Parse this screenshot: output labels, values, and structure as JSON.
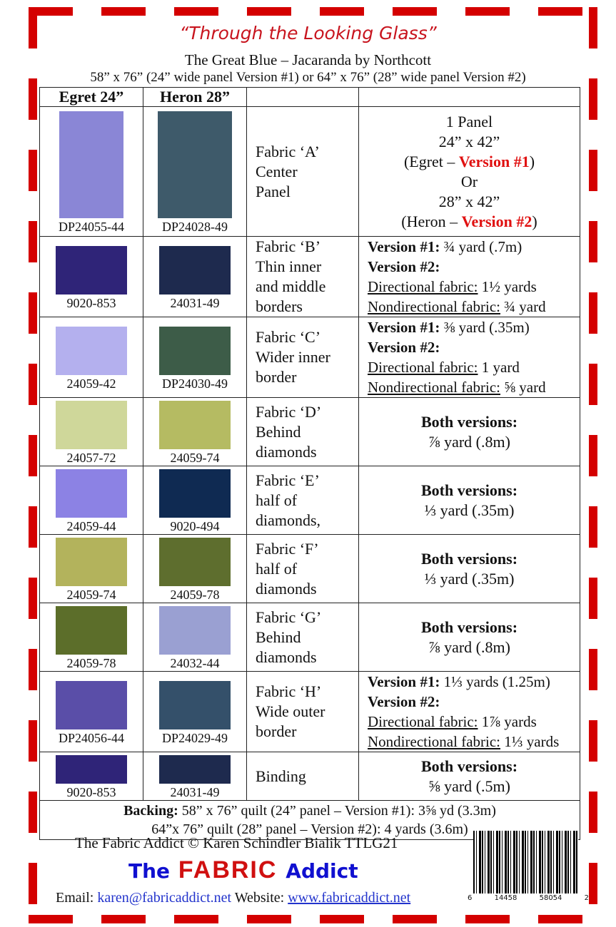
{
  "header": {
    "title": "“Through the Looking Glass”",
    "subtitle": "The Great Blue – Jacaranda by Northcott",
    "dimensions": "58” x 76” (24” wide panel Version #1) or 64” x 76” (28” wide panel Version #2)"
  },
  "columns": [
    "Egret 24”",
    "Heron 28”",
    "",
    ""
  ],
  "rows": [
    {
      "egret": "DP24055-44",
      "heron": "DP24028-49",
      "egret_color": "#8a86d6",
      "heron_color": "#3e5a6a",
      "fabric": [
        "Fabric ‘A’",
        "Center",
        "Panel"
      ],
      "req_type": "panel",
      "panel": {
        "l1": "1 Panel",
        "l2": "24” x 42”",
        "l3a": "(Egret – ",
        "l3b": "Version #1",
        "l3c": ")",
        "l4": "Or",
        "l5": "28” x 42”",
        "l6a": "(Heron – ",
        "l6b": "Version #2",
        "l6c": ")"
      }
    },
    {
      "egret": "9020-853",
      "heron": "24031-49",
      "egret_color": "#2f2478",
      "heron_color": "#1e2a4e",
      "fabric": [
        "Fabric ‘B’",
        "Thin inner",
        "and middle",
        "borders"
      ],
      "req_type": "versions",
      "v1label": "Version #1:",
      "v1": " ¾ yard (.7m)",
      "v2label": "Version #2:",
      "dlabel": "Directional fabric:",
      "d": " 1½ yards",
      "nlabel": "Nondirectional fabric:",
      "n": " ¾ yard"
    },
    {
      "egret": "24059-42",
      "heron": "DP24030-49",
      "egret_color": "#b4b0ee",
      "heron_color": "#3d5c48",
      "fabric": [
        "Fabric ‘C’",
        "Wider inner",
        "border"
      ],
      "req_type": "versions",
      "v1label": "Version #1:",
      "v1": " ⅜ yard (.35m)",
      "v2label": "Version #2:",
      "dlabel": "Directional fabric:",
      "d": " 1 yard",
      "nlabel": "Nondirectional fabric:",
      "n": " ⅝ yard"
    },
    {
      "egret": "24057-72",
      "heron": "24059-74",
      "egret_color": "#cfd79a",
      "heron_color": "#b5bb62",
      "fabric": [
        "Fabric ‘D’",
        "Behind",
        "diamonds"
      ],
      "req_type": "both",
      "both": "Both versions:",
      "amount": "⅞ yard (.8m)"
    },
    {
      "egret": "24059-44",
      "heron": "9020-494",
      "egret_color": "#8c82e4",
      "heron_color": "#0f2a52",
      "fabric": [
        "Fabric ‘E’",
        "half of",
        "diamonds,"
      ],
      "req_type": "both",
      "both": "Both versions:",
      "amount": "⅓ yard (.35m)"
    },
    {
      "egret": "24059-74",
      "heron": "24059-78",
      "egret_color": "#b3b35c",
      "heron_color": "#5e6e2e",
      "fabric": [
        "Fabric ‘F’",
        " half of",
        "diamonds"
      ],
      "req_type": "both",
      "both": "Both versions:",
      "amount": "⅓ yard (.35m)"
    },
    {
      "egret": "24059-78",
      "heron": "24032-44",
      "egret_color": "#5c6e2a",
      "heron_color": "#9aa0d2",
      "fabric": [
        "Fabric ‘G’",
        "Behind",
        "diamonds"
      ],
      "req_type": "both",
      "both": "Both versions:",
      "amount": "⅞ yard (.8m)"
    },
    {
      "egret": "DP24056-44",
      "heron": "DP24029-49",
      "egret_color": "#5a4ea8",
      "heron_color": "#34506a",
      "fabric": [
        "Fabric ‘H’",
        "Wide outer",
        "border"
      ],
      "req_type": "versions",
      "v1label": "Version #1:",
      "v1": " 1⅓ yards (1.25m)",
      "v2label": "Version #2:",
      "dlabel": "Directional fabric:",
      "d": " 1⅞ yards",
      "nlabel": "Nondirectional fabric:",
      "n": " 1⅓ yards"
    },
    {
      "egret": "9020-853",
      "heron": "24031-49",
      "egret_color": "#2f2478",
      "heron_color": "#1e2a4e",
      "fabric": [
        "Binding"
      ],
      "req_type": "both",
      "both": "Both versions:",
      "amount": "⅝ yard (.5m)"
    }
  ],
  "backing": {
    "label": "Backing:",
    "line1": " 58” x 76” quilt (24” panel – Version #1): 3⅝ yd (3.3m)",
    "line2": "64”x 76” quilt (28” panel – Version #2): 4 yards (3.6m)"
  },
  "footer": {
    "credit": "The Fabric Addict  © Karen Schindler Bialik  TTLG21",
    "logo": {
      "the": "The",
      "fabric": "FABRIC",
      "addict": "Addict"
    },
    "email_label": "Email: ",
    "email": "karen@fabricaddict.net",
    "website_label": " Website: ",
    "website": "www.fabricaddict.net"
  },
  "barcode": {
    "digits": [
      "6",
      "14458",
      "58054",
      "2"
    ]
  },
  "colors": {
    "border_dash": "#d40000",
    "accent_red": "#e01010",
    "link_blue": "#2233cc"
  }
}
